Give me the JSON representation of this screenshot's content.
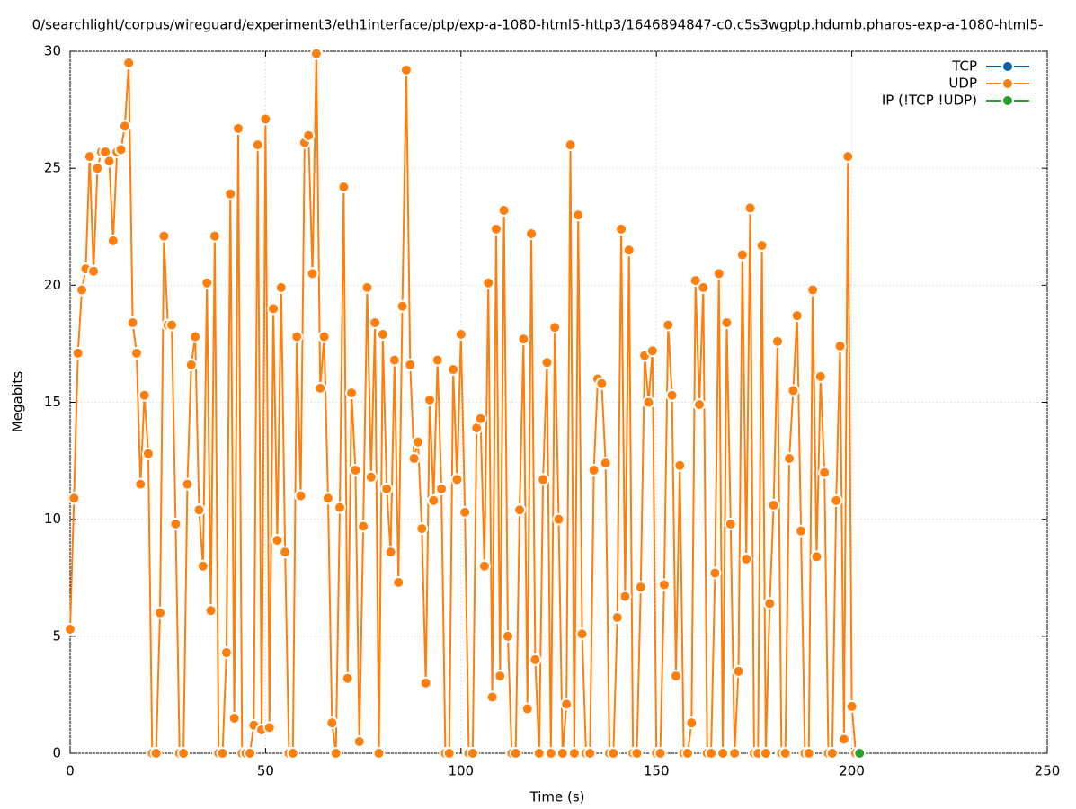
{
  "chart_data": {
    "type": "line",
    "title": "0/searchlight/corpus/wireguard/experiment3/eth1interface/ptp/exp-a-1080-html5-http3/1646894847-c0.c5s3wgptp.hdumb.pharos-exp-a-1080-html5-",
    "x_label": "Time (s)",
    "y_label": "Megabits",
    "xlim": [
      0,
      250
    ],
    "xticks": [
      0,
      50,
      100,
      150,
      200,
      250
    ],
    "ylim": [
      0,
      30
    ],
    "yticks": [
      0,
      5,
      10,
      15,
      20,
      25,
      30
    ],
    "grid": true,
    "legend": "top-right",
    "series": [
      {
        "name": "TCP",
        "color": "#0060ad",
        "x": [],
        "values": []
      },
      {
        "name": "UDP",
        "color": "#ff7f0e",
        "x": [
          0,
          1,
          2,
          3,
          4,
          5,
          6,
          7,
          8,
          9,
          10,
          11,
          12,
          13,
          14,
          15,
          16,
          17,
          18,
          19,
          20,
          21,
          22,
          23,
          24,
          25,
          26,
          27,
          28,
          29,
          30,
          31,
          32,
          33,
          34,
          35,
          36,
          37,
          38,
          39,
          40,
          41,
          42,
          43,
          44,
          45,
          46,
          47,
          48,
          49,
          50,
          51,
          52,
          53,
          54,
          55,
          56,
          57,
          58,
          59,
          60,
          61,
          62,
          63,
          64,
          65,
          66,
          67,
          68,
          69,
          70,
          71,
          72,
          73,
          74,
          75,
          76,
          77,
          78,
          79,
          80,
          81,
          82,
          83,
          84,
          85,
          86,
          87,
          88,
          89,
          90,
          91,
          92,
          93,
          94,
          95,
          96,
          97,
          98,
          99,
          100,
          101,
          102,
          103,
          104,
          105,
          106,
          107,
          108,
          109,
          110,
          111,
          112,
          113,
          114,
          115,
          116,
          117,
          118,
          119,
          120,
          121,
          122,
          123,
          124,
          125,
          126,
          127,
          128,
          129,
          130,
          131,
          132,
          133,
          134,
          135,
          136,
          137,
          138,
          139,
          140,
          141,
          142,
          143,
          144,
          145,
          146,
          147,
          148,
          149,
          150,
          151,
          152,
          153,
          154,
          155,
          156,
          157,
          158,
          159,
          160,
          161,
          162,
          163,
          164,
          165,
          166,
          167,
          168,
          169,
          170,
          171,
          172,
          173,
          174,
          175,
          176,
          177,
          178,
          179,
          180,
          181,
          182,
          183,
          184,
          185,
          186,
          187,
          188,
          189,
          190,
          191,
          192,
          193,
          194,
          195,
          196,
          197,
          198,
          199,
          200,
          201
        ],
        "values": [
          5.3,
          10.9,
          17.1,
          19.8,
          20.7,
          25.5,
          20.6,
          25.0,
          25.7,
          25.7,
          25.3,
          21.9,
          25.7,
          25.8,
          26.8,
          29.5,
          18.4,
          17.1,
          11.5,
          15.3,
          12.8,
          0,
          0,
          6.0,
          22.1,
          18.3,
          18.3,
          9.8,
          0,
          0,
          11.5,
          16.6,
          17.8,
          10.4,
          8.0,
          20.1,
          6.1,
          22.1,
          0,
          0,
          4.3,
          23.9,
          1.5,
          26.7,
          0,
          0,
          0,
          1.2,
          26.0,
          1.0,
          27.1,
          1.1,
          19.0,
          9.1,
          19.9,
          8.6,
          0,
          0,
          17.8,
          11.0,
          26.1,
          26.4,
          20.5,
          29.9,
          15.6,
          17.8,
          10.9,
          1.3,
          0,
          10.5,
          24.2,
          3.2,
          15.4,
          12.1,
          0.5,
          9.7,
          19.9,
          11.8,
          18.4,
          0,
          17.9,
          11.3,
          8.6,
          16.8,
          7.3,
          19.1,
          29.2,
          16.6,
          12.6,
          13.3,
          9.6,
          3.0,
          15.1,
          10.8,
          16.8,
          11.3,
          0,
          0,
          16.4,
          11.7,
          17.9,
          10.3,
          0,
          0,
          13.9,
          14.3,
          8.0,
          20.1,
          2.4,
          22.4,
          3.3,
          23.2,
          5.0,
          0,
          0,
          10.4,
          17.7,
          1.9,
          22.2,
          4.0,
          0,
          11.7,
          16.7,
          0,
          18.2,
          10.0,
          0,
          2.1,
          26.0,
          0,
          23.0,
          5.1,
          0,
          0,
          12.1,
          16.0,
          15.8,
          12.4,
          0,
          0,
          5.8,
          22.4,
          6.7,
          21.5,
          0,
          0,
          7.1,
          17.0,
          15.0,
          17.2,
          0,
          0,
          7.2,
          18.3,
          15.3,
          3.3,
          12.3,
          0,
          0,
          1.3,
          20.2,
          14.9,
          19.9,
          0,
          0,
          7.7,
          20.5,
          0,
          18.4,
          9.8,
          0,
          3.5,
          21.3,
          8.3,
          23.3,
          0,
          0,
          21.7,
          0,
          6.4,
          10.6,
          17.6,
          0,
          0,
          12.6,
          15.5,
          18.7,
          9.5,
          0,
          0,
          19.8,
          8.4,
          16.1,
          12.0,
          0,
          0,
          10.8,
          17.4,
          0.6,
          25.5,
          2.0,
          0
        ]
      },
      {
        "name": "IP (!TCP  !UDP)",
        "color": "#2ca02c",
        "x": [
          202
        ],
        "values": [
          0
        ]
      }
    ]
  }
}
